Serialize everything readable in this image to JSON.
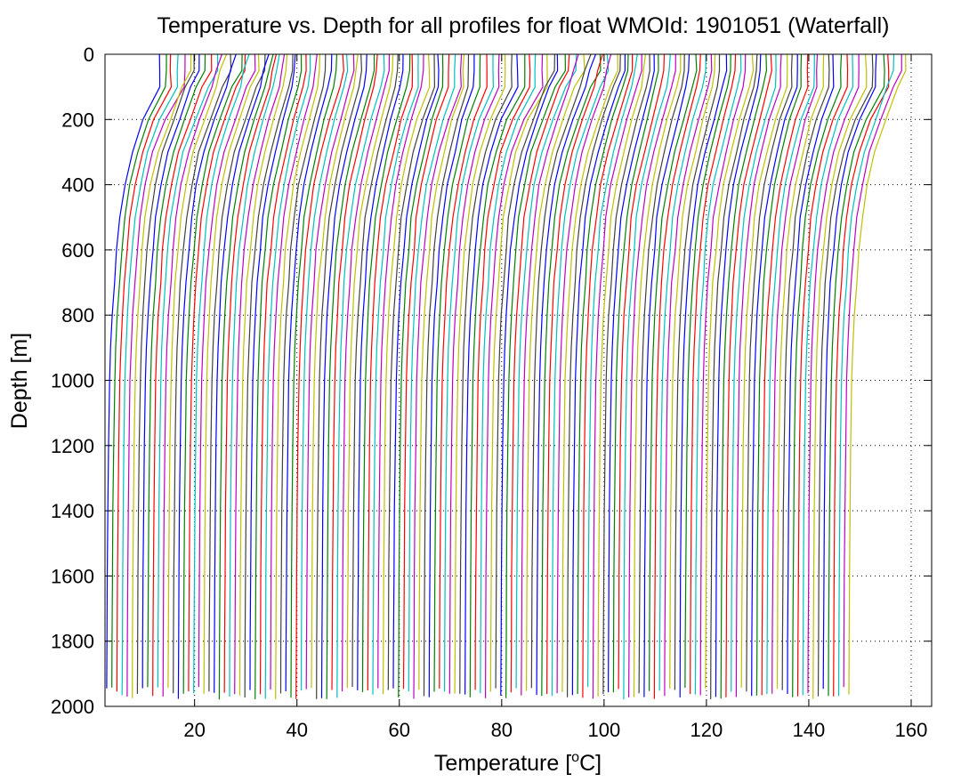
{
  "chart_data": {
    "type": "line",
    "title": "Temperature vs. Depth for all profiles for float WMOId: 1901051 (Waterfall)",
    "xlabel": "Temperature [",
    "xlabel_sup": "o",
    "xlabel_end": "C]",
    "ylabel": "Depth [m]",
    "xlim": [
      2.5,
      164
    ],
    "ylim": [
      0,
      2000
    ],
    "y_reversed": true,
    "grid": true,
    "xticks": [
      20,
      40,
      60,
      80,
      100,
      120,
      140,
      160
    ],
    "yticks": [
      0,
      200,
      400,
      600,
      800,
      1000,
      1200,
      1400,
      1600,
      1800,
      2000
    ],
    "xtick_labels": [
      "20",
      "40",
      "60",
      "80",
      "100",
      "120",
      "140",
      "160"
    ],
    "ytick_labels": [
      "0",
      "200",
      "400",
      "600",
      "800",
      "1000",
      "1200",
      "1400",
      "1600",
      "1800",
      "2000"
    ],
    "waterfall_offset_per_profile": 1,
    "profile_count": 146,
    "colors": [
      "#0000ff",
      "#008000",
      "#ff0000",
      "#00bfbf",
      "#bf00bf",
      "#bfbf00",
      "#404040"
    ],
    "series": [
      {
        "depth": [
          0,
          50,
          100,
          200,
          300,
          400,
          500,
          600,
          700,
          800,
          900,
          1000,
          1200,
          1400,
          1600,
          1800,
          1980
        ],
        "temperature": [
          11.5,
          11.4,
          11.0,
          9.3,
          7.8,
          6.4,
          5.4,
          4.8,
          4.3,
          3.9,
          3.6,
          3.4,
          3.2,
          3.05,
          2.95,
          2.88,
          2.83
        ]
      }
    ]
  }
}
